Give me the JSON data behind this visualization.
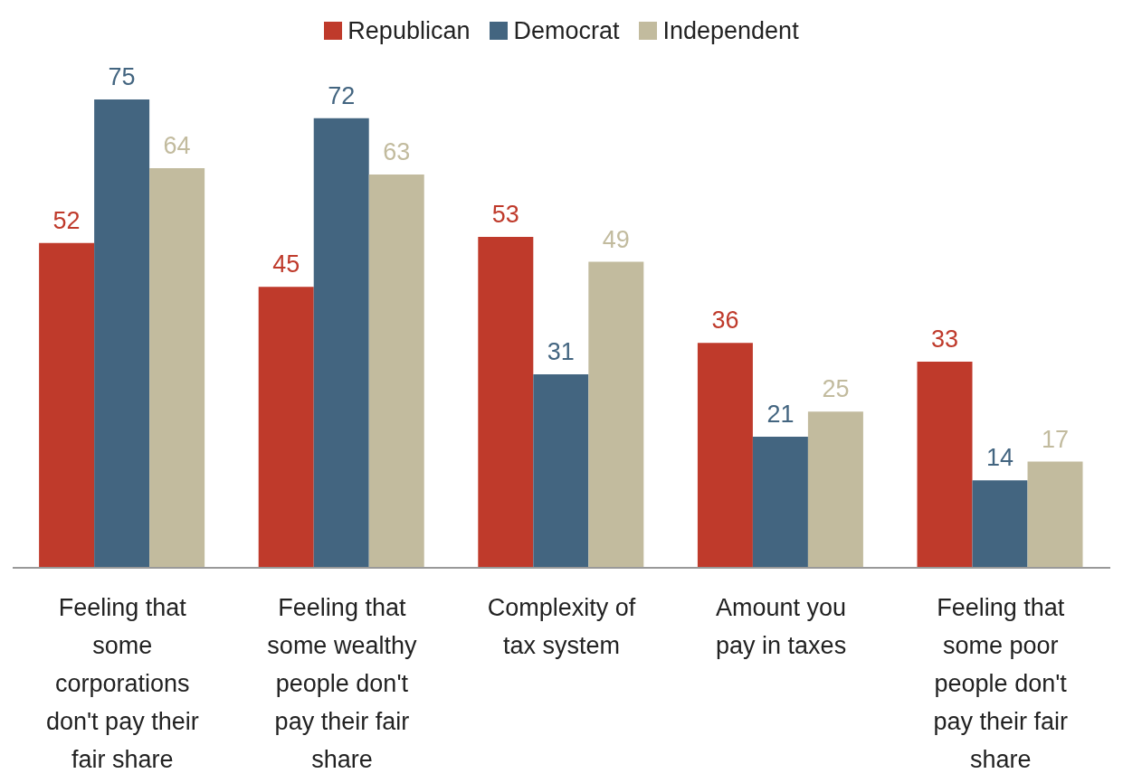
{
  "chart_data": {
    "type": "bar",
    "categories": [
      "Feeling that some corporations don't pay their fair share",
      "Feeling that some wealthy people don't pay their fair share",
      "Complexity of tax system",
      "Amount you pay in taxes",
      "Feeling that some poor people don't pay their fair share"
    ],
    "series": [
      {
        "name": "Republican",
        "color": "#bf3a2b",
        "values": [
          52,
          45,
          53,
          36,
          33
        ]
      },
      {
        "name": "Democrat",
        "color": "#436580",
        "values": [
          75,
          72,
          31,
          21,
          14
        ]
      },
      {
        "name": "Independent",
        "color": "#c2bb9e",
        "values": [
          64,
          63,
          49,
          25,
          17
        ]
      }
    ],
    "data_labels": true,
    "legend": "top"
  }
}
